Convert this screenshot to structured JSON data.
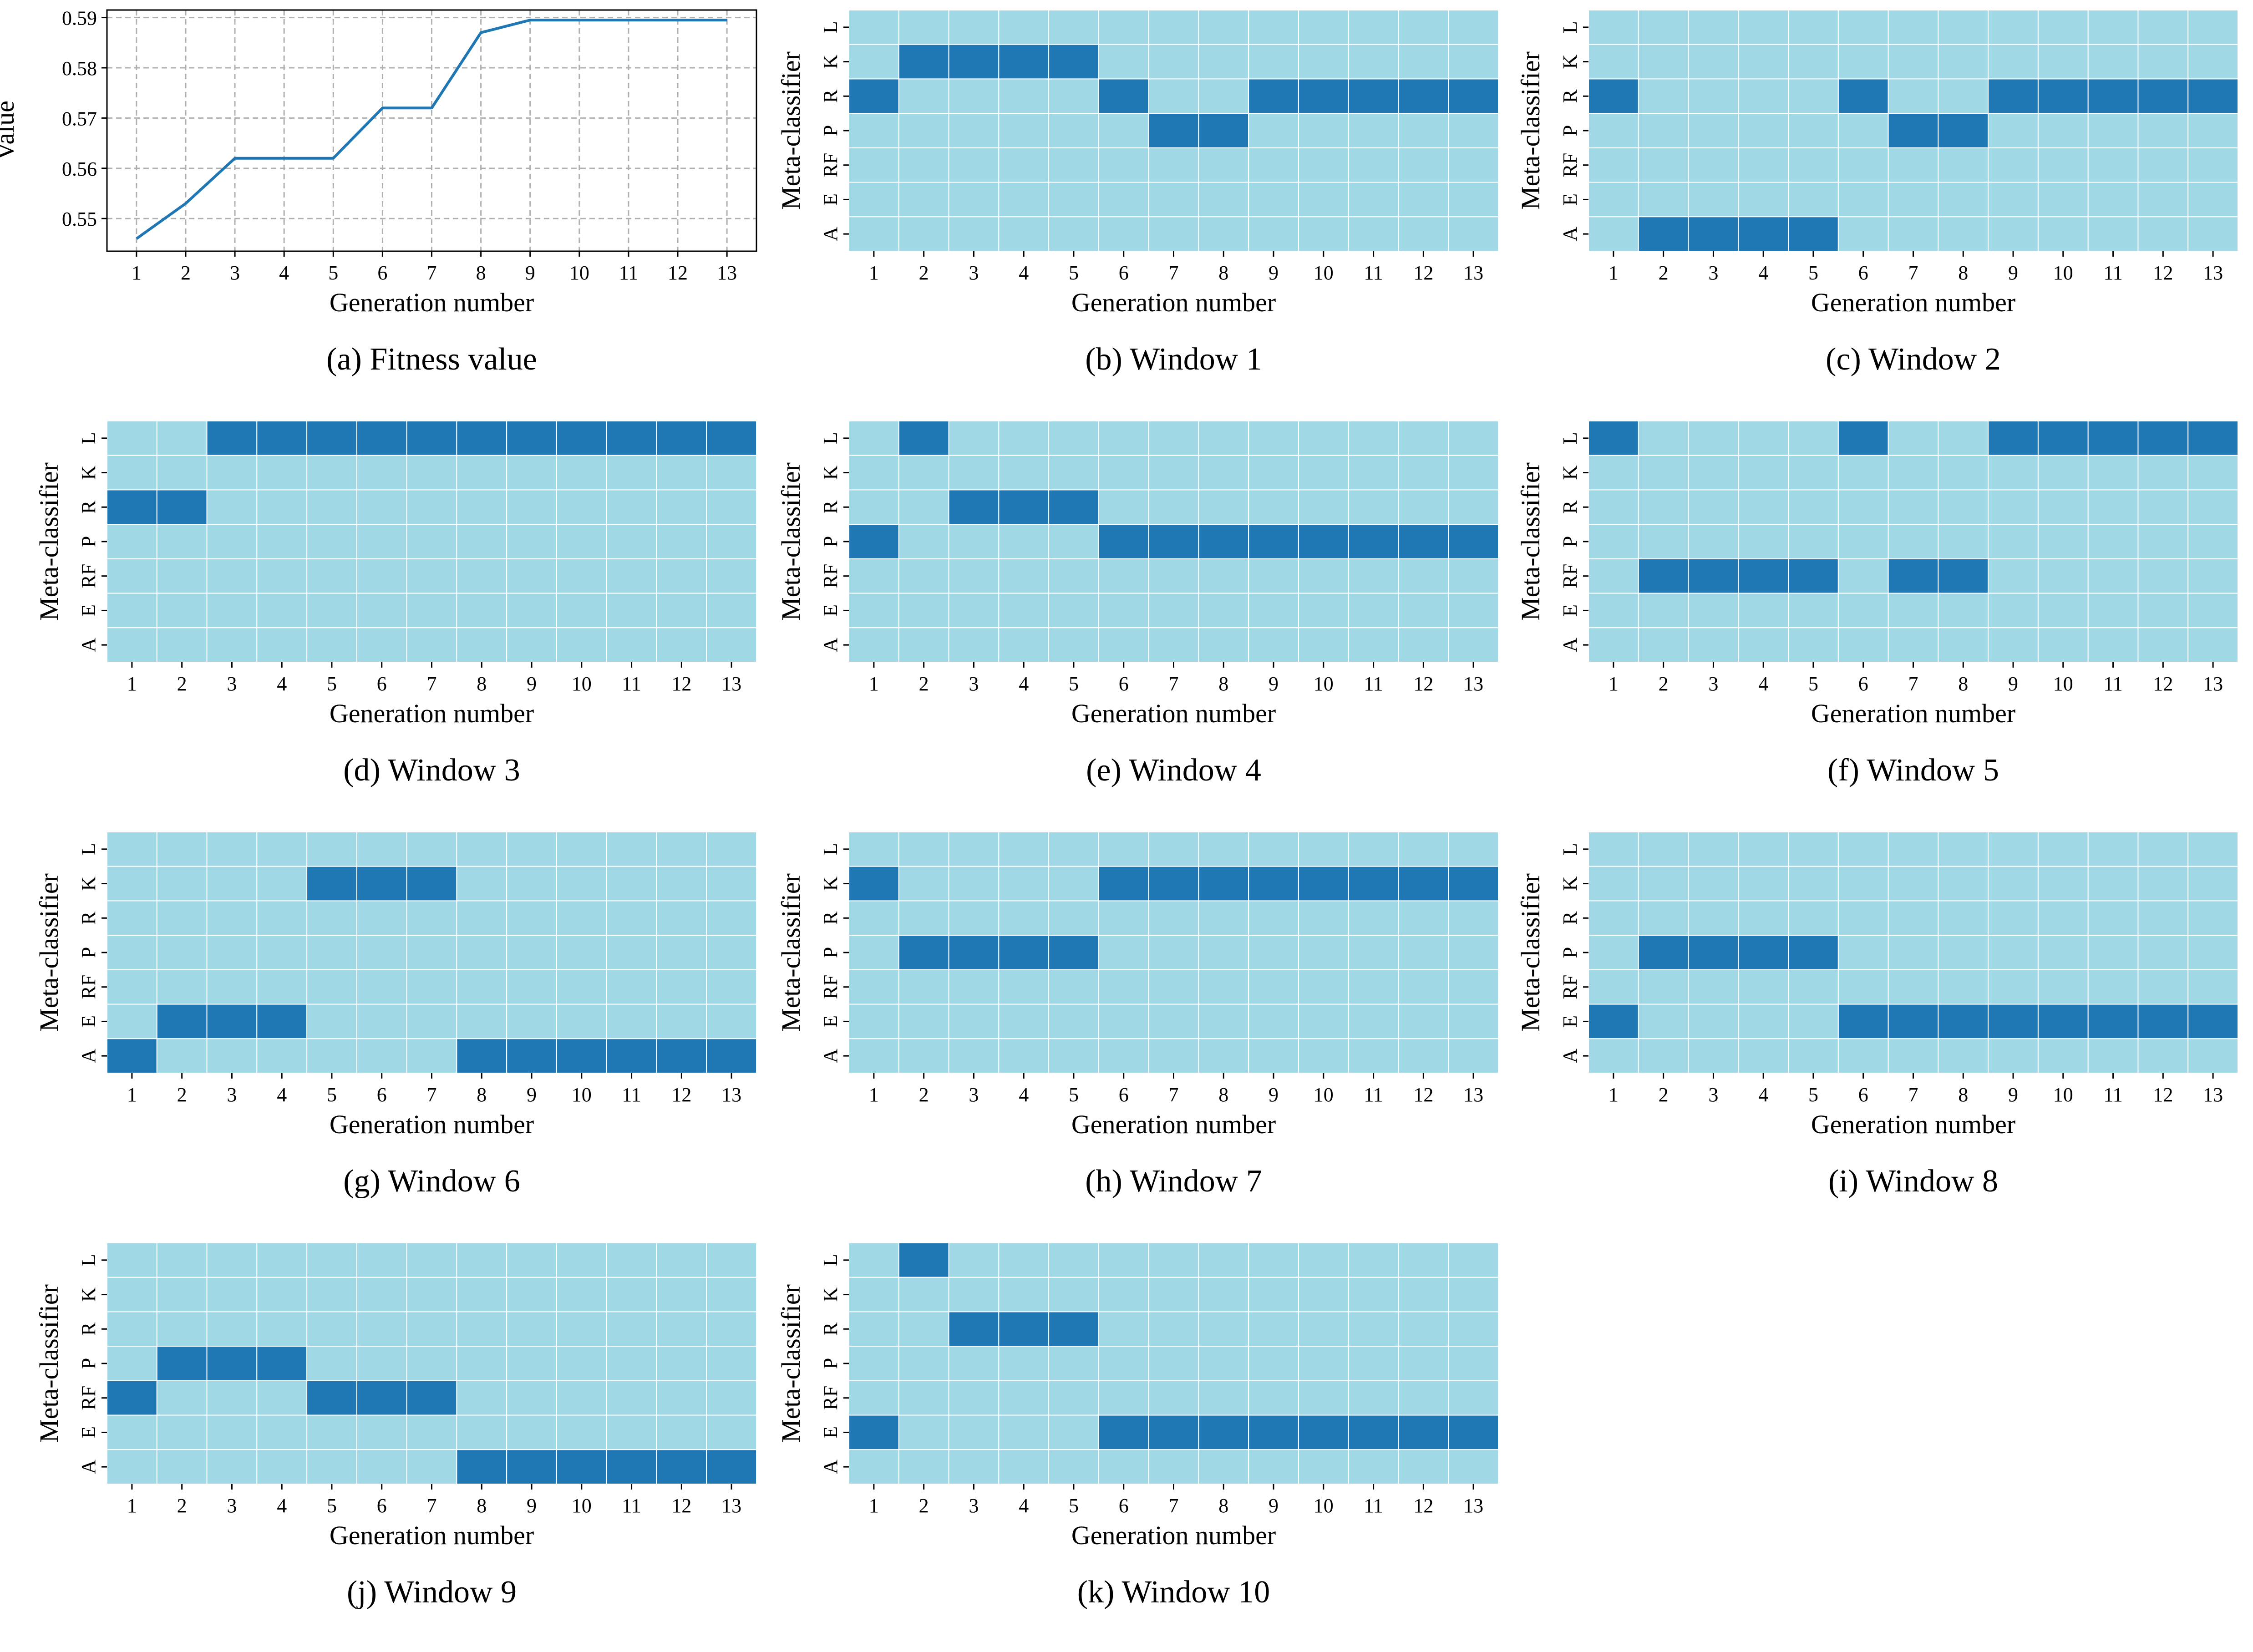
{
  "colors": {
    "off": "#a0d9e5",
    "on": "#1f77b4",
    "line": "#1f77b4",
    "grid": "#b0b0b0",
    "cell_border": "#ffffff"
  },
  "chart_data": [
    {
      "type": "line",
      "caption": "(a) Fitness value",
      "xlabel": "Generation number",
      "ylabel": "Value",
      "x": [
        1,
        2,
        3,
        4,
        5,
        6,
        7,
        8,
        9,
        10,
        11,
        12,
        13
      ],
      "y": [
        0.546,
        0.553,
        0.562,
        0.562,
        0.562,
        0.572,
        0.572,
        0.587,
        0.5895,
        0.5895,
        0.5895,
        0.5895,
        0.5895
      ],
      "ylim": [
        0.5435,
        0.5915
      ],
      "yticks": [
        0.55,
        0.56,
        0.57,
        0.58,
        0.59
      ],
      "ytick_labels": [
        "0.55",
        "0.56",
        "0.57",
        "0.58",
        "0.59"
      ],
      "grid": true
    },
    {
      "type": "heatmap",
      "caption": "(b) Window 1",
      "xlabel": "Generation number",
      "ylabel": "Meta-classifier",
      "x": [
        "1",
        "2",
        "3",
        "4",
        "5",
        "6",
        "7",
        "8",
        "9",
        "10",
        "11",
        "12",
        "13"
      ],
      "y": [
        "L",
        "K",
        "R",
        "P",
        "RF",
        "E",
        "A"
      ],
      "selected": [
        2,
        1,
        1,
        1,
        1,
        2,
        3,
        3,
        2,
        2,
        2,
        2,
        2
      ]
    },
    {
      "type": "heatmap",
      "caption": "(c) Window 2",
      "xlabel": "Generation number",
      "ylabel": "Meta-classifier",
      "x": [
        "1",
        "2",
        "3",
        "4",
        "5",
        "6",
        "7",
        "8",
        "9",
        "10",
        "11",
        "12",
        "13"
      ],
      "y": [
        "L",
        "K",
        "R",
        "P",
        "RF",
        "E",
        "A"
      ],
      "selected": [
        2,
        6,
        6,
        6,
        6,
        2,
        3,
        3,
        2,
        2,
        2,
        2,
        2
      ]
    },
    {
      "type": "heatmap",
      "caption": "(d) Window 3",
      "xlabel": "Generation number",
      "ylabel": "Meta-classifier",
      "x": [
        "1",
        "2",
        "3",
        "4",
        "5",
        "6",
        "7",
        "8",
        "9",
        "10",
        "11",
        "12",
        "13"
      ],
      "y": [
        "L",
        "K",
        "R",
        "P",
        "RF",
        "E",
        "A"
      ],
      "selected": [
        2,
        2,
        0,
        0,
        0,
        0,
        0,
        0,
        0,
        0,
        0,
        0,
        0
      ]
    },
    {
      "type": "heatmap",
      "caption": "(e) Window 4",
      "xlabel": "Generation number",
      "ylabel": "Meta-classifier",
      "x": [
        "1",
        "2",
        "3",
        "4",
        "5",
        "6",
        "7",
        "8",
        "9",
        "10",
        "11",
        "12",
        "13"
      ],
      "y": [
        "L",
        "K",
        "R",
        "P",
        "RF",
        "E",
        "A"
      ],
      "selected": [
        3,
        0,
        2,
        2,
        2,
        3,
        3,
        3,
        3,
        3,
        3,
        3,
        3
      ]
    },
    {
      "type": "heatmap",
      "caption": "(f) Window 5",
      "xlabel": "Generation number",
      "ylabel": "Meta-classifier",
      "x": [
        "1",
        "2",
        "3",
        "4",
        "5",
        "6",
        "7",
        "8",
        "9",
        "10",
        "11",
        "12",
        "13"
      ],
      "y": [
        "L",
        "K",
        "R",
        "P",
        "RF",
        "E",
        "A"
      ],
      "selected": [
        0,
        4,
        4,
        4,
        4,
        0,
        4,
        4,
        0,
        0,
        0,
        0,
        0
      ]
    },
    {
      "type": "heatmap",
      "caption": "(g) Window 6",
      "xlabel": "Generation number",
      "ylabel": "Meta-classifier",
      "x": [
        "1",
        "2",
        "3",
        "4",
        "5",
        "6",
        "7",
        "8",
        "9",
        "10",
        "11",
        "12",
        "13"
      ],
      "y": [
        "L",
        "K",
        "R",
        "P",
        "RF",
        "E",
        "A"
      ],
      "selected": [
        6,
        5,
        5,
        5,
        1,
        1,
        1,
        6,
        6,
        6,
        6,
        6,
        6
      ]
    },
    {
      "type": "heatmap",
      "caption": "(h) Window 7",
      "xlabel": "Generation number",
      "ylabel": "Meta-classifier",
      "x": [
        "1",
        "2",
        "3",
        "4",
        "5",
        "6",
        "7",
        "8",
        "9",
        "10",
        "11",
        "12",
        "13"
      ],
      "y": [
        "L",
        "K",
        "R",
        "P",
        "RF",
        "E",
        "A"
      ],
      "selected": [
        1,
        3,
        3,
        3,
        3,
        1,
        1,
        1,
        1,
        1,
        1,
        1,
        1
      ]
    },
    {
      "type": "heatmap",
      "caption": "(i) Window 8",
      "xlabel": "Generation number",
      "ylabel": "Meta-classifier",
      "x": [
        "1",
        "2",
        "3",
        "4",
        "5",
        "6",
        "7",
        "8",
        "9",
        "10",
        "11",
        "12",
        "13"
      ],
      "y": [
        "L",
        "K",
        "R",
        "P",
        "RF",
        "E",
        "A"
      ],
      "selected": [
        5,
        3,
        3,
        3,
        3,
        5,
        5,
        5,
        5,
        5,
        5,
        5,
        5
      ]
    },
    {
      "type": "heatmap",
      "caption": "(j) Window 9",
      "xlabel": "Generation number",
      "ylabel": "Meta-classifier",
      "x": [
        "1",
        "2",
        "3",
        "4",
        "5",
        "6",
        "7",
        "8",
        "9",
        "10",
        "11",
        "12",
        "13"
      ],
      "y": [
        "L",
        "K",
        "R",
        "P",
        "RF",
        "E",
        "A"
      ],
      "selected": [
        4,
        3,
        3,
        3,
        4,
        4,
        4,
        6,
        6,
        6,
        6,
        6,
        6
      ]
    },
    {
      "type": "heatmap",
      "caption": "(k) Window 10",
      "xlabel": "Generation number",
      "ylabel": "Meta-classifier",
      "x": [
        "1",
        "2",
        "3",
        "4",
        "5",
        "6",
        "7",
        "8",
        "9",
        "10",
        "11",
        "12",
        "13"
      ],
      "y": [
        "L",
        "K",
        "R",
        "P",
        "RF",
        "E",
        "A"
      ],
      "selected": [
        5,
        0,
        2,
        2,
        2,
        5,
        5,
        5,
        5,
        5,
        5,
        5,
        5
      ]
    }
  ]
}
